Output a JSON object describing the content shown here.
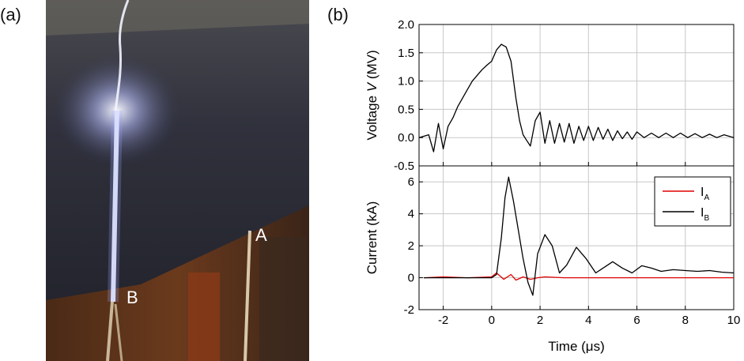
{
  "labels": {
    "panel_a": "(a)",
    "panel_b": "(b)"
  },
  "photo": {
    "description_labels": [
      "A",
      "B"
    ],
    "colors": {
      "sky": "#2e2f3a",
      "floor": "#5a2f18",
      "arc": "#f2f4ff",
      "rod": "#c9b79a"
    }
  },
  "chart_data": [
    {
      "type": "line",
      "title": "",
      "xlabel": "",
      "ylabel_prefix": "Voltage ",
      "ylabel_var": "V",
      "ylabel_suffix": " (MV)",
      "xlim": [
        -3,
        10
      ],
      "ylim": [
        -0.5,
        2.0
      ],
      "xticks": [
        -2,
        0,
        2,
        4,
        6,
        8,
        10
      ],
      "yticks": [
        -0.5,
        0.0,
        0.5,
        1.0,
        1.5,
        2.0
      ],
      "ytick_labels": [
        "-0.5",
        "0.0",
        "0.5",
        "1.0",
        "1.5",
        "2.0"
      ],
      "grid": true,
      "series": [
        {
          "color": "#000000",
          "x": [
            -3.0,
            -2.6,
            -2.4,
            -2.2,
            -2.0,
            -1.8,
            -1.6,
            -1.4,
            -1.2,
            -1.0,
            -0.8,
            -0.6,
            -0.4,
            -0.2,
            0.0,
            0.2,
            0.4,
            0.6,
            0.8,
            1.0,
            1.15,
            1.3,
            1.45,
            1.6,
            1.8,
            2.0,
            2.2,
            2.4,
            2.6,
            2.8,
            3.0,
            3.2,
            3.4,
            3.6,
            3.8,
            4.0,
            4.2,
            4.4,
            4.6,
            4.8,
            5.0,
            5.2,
            5.4,
            5.6,
            5.8,
            6.0,
            6.3,
            6.6,
            6.9,
            7.2,
            7.5,
            7.8,
            8.1,
            8.4,
            8.7,
            9.0,
            9.3,
            9.6,
            10.0
          ],
          "y": [
            0.0,
            0.05,
            -0.25,
            0.25,
            -0.2,
            0.2,
            0.35,
            0.55,
            0.7,
            0.85,
            1.0,
            1.1,
            1.2,
            1.28,
            1.35,
            1.55,
            1.65,
            1.6,
            1.35,
            0.7,
            0.3,
            0.05,
            -0.05,
            -0.15,
            0.3,
            0.45,
            -0.1,
            0.3,
            -0.1,
            0.25,
            -0.08,
            0.25,
            -0.1,
            0.2,
            -0.05,
            0.2,
            -0.05,
            0.18,
            -0.03,
            0.15,
            -0.05,
            0.12,
            -0.02,
            0.1,
            -0.03,
            0.1,
            0.0,
            0.08,
            0.0,
            0.08,
            0.0,
            0.08,
            0.0,
            0.07,
            0.0,
            0.06,
            0.0,
            0.05,
            0.0
          ]
        }
      ]
    },
    {
      "type": "line",
      "title": "",
      "xlabel_prefix": "Time (",
      "xlabel_unit": "μs",
      "xlabel_suffix": ")",
      "ylabel": "Current (kA)",
      "xlim": [
        -3,
        10
      ],
      "ylim": [
        -2,
        7
      ],
      "xticks": [
        -2,
        0,
        2,
        4,
        6,
        8,
        10
      ],
      "yticks": [
        -2,
        0,
        2,
        4,
        6
      ],
      "grid": true,
      "legend": "top-right",
      "series": [
        {
          "name_main": "I",
          "name_sub": "A",
          "color": "#e00000",
          "x": [
            -2.8,
            -2.0,
            -1.0,
            0.0,
            0.2,
            0.5,
            0.8,
            1.0,
            1.3,
            1.6,
            1.9,
            2.2,
            3.0,
            5.0,
            7.0,
            10.0
          ],
          "y": [
            0.0,
            0.05,
            0.0,
            0.05,
            0.3,
            -0.1,
            0.2,
            -0.15,
            0.05,
            -0.1,
            0.0,
            0.05,
            0.0,
            0.0,
            0.0,
            0.0
          ]
        },
        {
          "name_main": "I",
          "name_sub": "B",
          "color": "#000000",
          "x": [
            -2.8,
            -2.0,
            -1.0,
            0.0,
            0.2,
            0.4,
            0.55,
            0.7,
            0.9,
            1.1,
            1.3,
            1.5,
            1.7,
            1.9,
            2.2,
            2.5,
            2.8,
            3.1,
            3.5,
            3.9,
            4.3,
            4.7,
            5.0,
            5.4,
            5.8,
            6.2,
            6.6,
            7.0,
            7.5,
            8.0,
            8.5,
            9.0,
            9.5,
            10.0
          ],
          "y": [
            0.0,
            0.0,
            0.0,
            0.0,
            0.2,
            2.5,
            5.0,
            6.3,
            4.8,
            3.0,
            1.2,
            -0.3,
            -1.1,
            1.5,
            2.7,
            2.0,
            0.3,
            0.8,
            1.9,
            1.2,
            0.3,
            0.7,
            1.0,
            0.6,
            0.3,
            0.75,
            0.6,
            0.4,
            0.5,
            0.45,
            0.4,
            0.45,
            0.35,
            0.3
          ]
        }
      ]
    }
  ]
}
